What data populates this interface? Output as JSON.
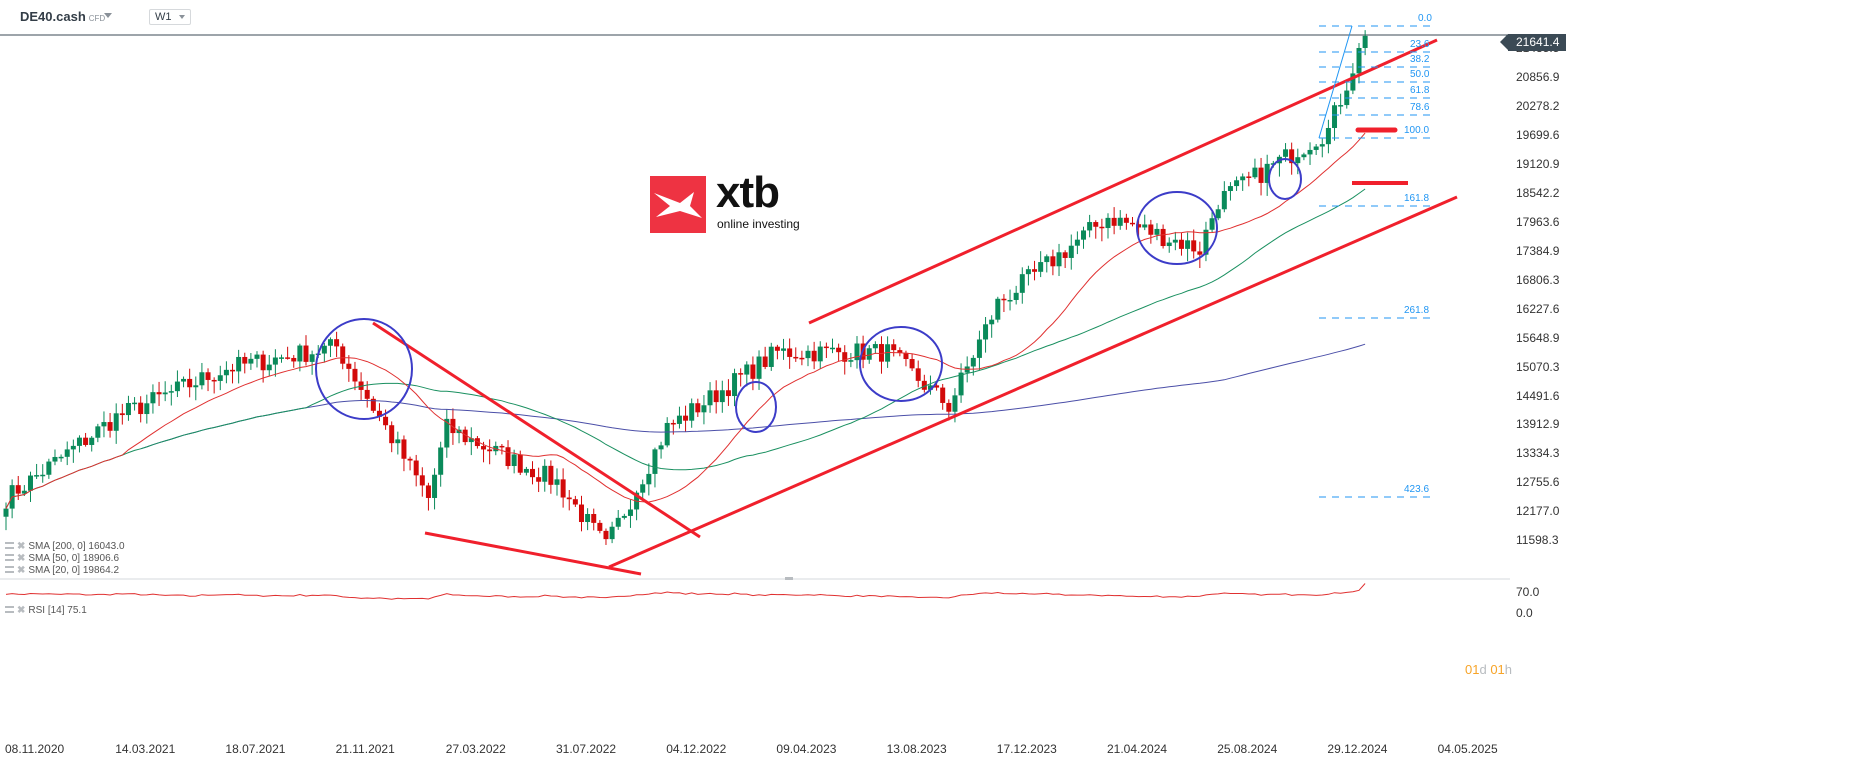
{
  "header": {
    "symbol": "DE40.cash",
    "symbol_type": "CFD",
    "timeframe": "W1"
  },
  "brand": {
    "name": "xtb",
    "tagline": "online investing",
    "color": "#ee3342"
  },
  "current_price": "21641.4",
  "y_axis_labels": [
    "21435.5",
    "20856.9",
    "20278.2",
    "19699.6",
    "19120.9",
    "18542.2",
    "17963.6",
    "17384.9",
    "16806.3",
    "16227.6",
    "15648.9",
    "15070.3",
    "14491.6",
    "13912.9",
    "13334.3",
    "12755.6",
    "12177.0",
    "11598.3"
  ],
  "x_axis_labels": [
    "08.11.2020",
    "14.03.2021",
    "18.07.2021",
    "21.11.2021",
    "27.03.2022",
    "31.07.2022",
    "04.12.2022",
    "09.04.2023",
    "13.08.2023",
    "17.12.2023",
    "21.04.2024",
    "25.08.2024",
    "29.12.2024",
    "04.05.2025"
  ],
  "rsi_axis_labels": [
    "70.0",
    "0.0"
  ],
  "fibonacci_levels": [
    "0.0",
    "23.6",
    "38.2",
    "50.0",
    "61.8",
    "78.6",
    "100.0",
    "161.8",
    "261.8",
    "423.6"
  ],
  "indicators": [
    {
      "label": "SMA [200, 0] 16043.0",
      "color": "#4b4fa8"
    },
    {
      "label": "SMA [50, 0] 18906.6",
      "color": "#1a9060"
    },
    {
      "label": "SMA [20, 0] 19864.2",
      "color": "#e03030"
    }
  ],
  "rsi": {
    "label": "RSI [14] 75.1",
    "color": "#e03030"
  },
  "timer": {
    "days": "01",
    "days_unit": "d",
    "hours": "01",
    "hours_unit": "h"
  },
  "colors": {
    "bull": "#0a8a5a",
    "bear": "#d20a0a",
    "trendline": "#f0202c",
    "circle": "#3c3cc8",
    "fib": "#2196f3"
  },
  "chart_data": {
    "type": "candlestick",
    "title": "DE40.cash CFD W1",
    "xlabel": "",
    "ylabel": "",
    "ylim": [
      11598.3,
      21800
    ],
    "x_range": [
      "08.11.2020",
      "04.05.2025"
    ],
    "last_price": 21641.4,
    "close_path_anchors": [
      {
        "date": "08.11.2020",
        "close": 13100
      },
      {
        "date": "14.03.2021",
        "close": 14600
      },
      {
        "date": "18.07.2021",
        "close": 15500
      },
      {
        "date": "21.11.2021",
        "close": 15900
      },
      {
        "date": "07.03.2022",
        "close": 13100
      },
      {
        "date": "27.03.2022",
        "close": 14400
      },
      {
        "date": "31.07.2022",
        "close": 13400
      },
      {
        "date": "26.09.2022",
        "close": 12200
      },
      {
        "date": "04.12.2022",
        "close": 14400
      },
      {
        "date": "09.04.2023",
        "close": 15800
      },
      {
        "date": "13.08.2023",
        "close": 15800
      },
      {
        "date": "23.10.2023",
        "close": 14800
      },
      {
        "date": "17.12.2023",
        "close": 16700
      },
      {
        "date": "21.04.2024",
        "close": 18300
      },
      {
        "date": "05.08.2024",
        "close": 17700
      },
      {
        "date": "25.08.2024",
        "close": 18600
      },
      {
        "date": "29.12.2024",
        "close": 19900
      },
      {
        "date": "10.02.2025",
        "close": 21641.4
      }
    ],
    "sma": [
      {
        "name": "SMA 200",
        "last": 16043.0
      },
      {
        "name": "SMA 50",
        "last": 18906.6
      },
      {
        "name": "SMA 20",
        "last": 19864.2
      }
    ],
    "rsi_last": 75.1,
    "fibonacci": [
      {
        "level": 0.0,
        "price": 21720
      },
      {
        "level": 23.6,
        "price": 21230
      },
      {
        "level": 38.2,
        "price": 20930
      },
      {
        "level": 50.0,
        "price": 20680
      },
      {
        "level": 61.8,
        "price": 20440
      },
      {
        "level": 78.6,
        "price": 20100
      },
      {
        "level": 100.0,
        "price": 19660
      },
      {
        "level": 161.8,
        "price": 18390
      },
      {
        "level": 261.8,
        "price": 16330
      },
      {
        "level": 423.6,
        "price": 13000
      }
    ],
    "annotations": [
      "ascending channel (upper/lower trendlines)",
      "descending wedge 2022",
      "5 blue circles marking SMA20/SMA50 retests",
      "red horizontal marks near 19860 and 18900"
    ],
    "grid": false,
    "legend_position": "bottom-left"
  }
}
